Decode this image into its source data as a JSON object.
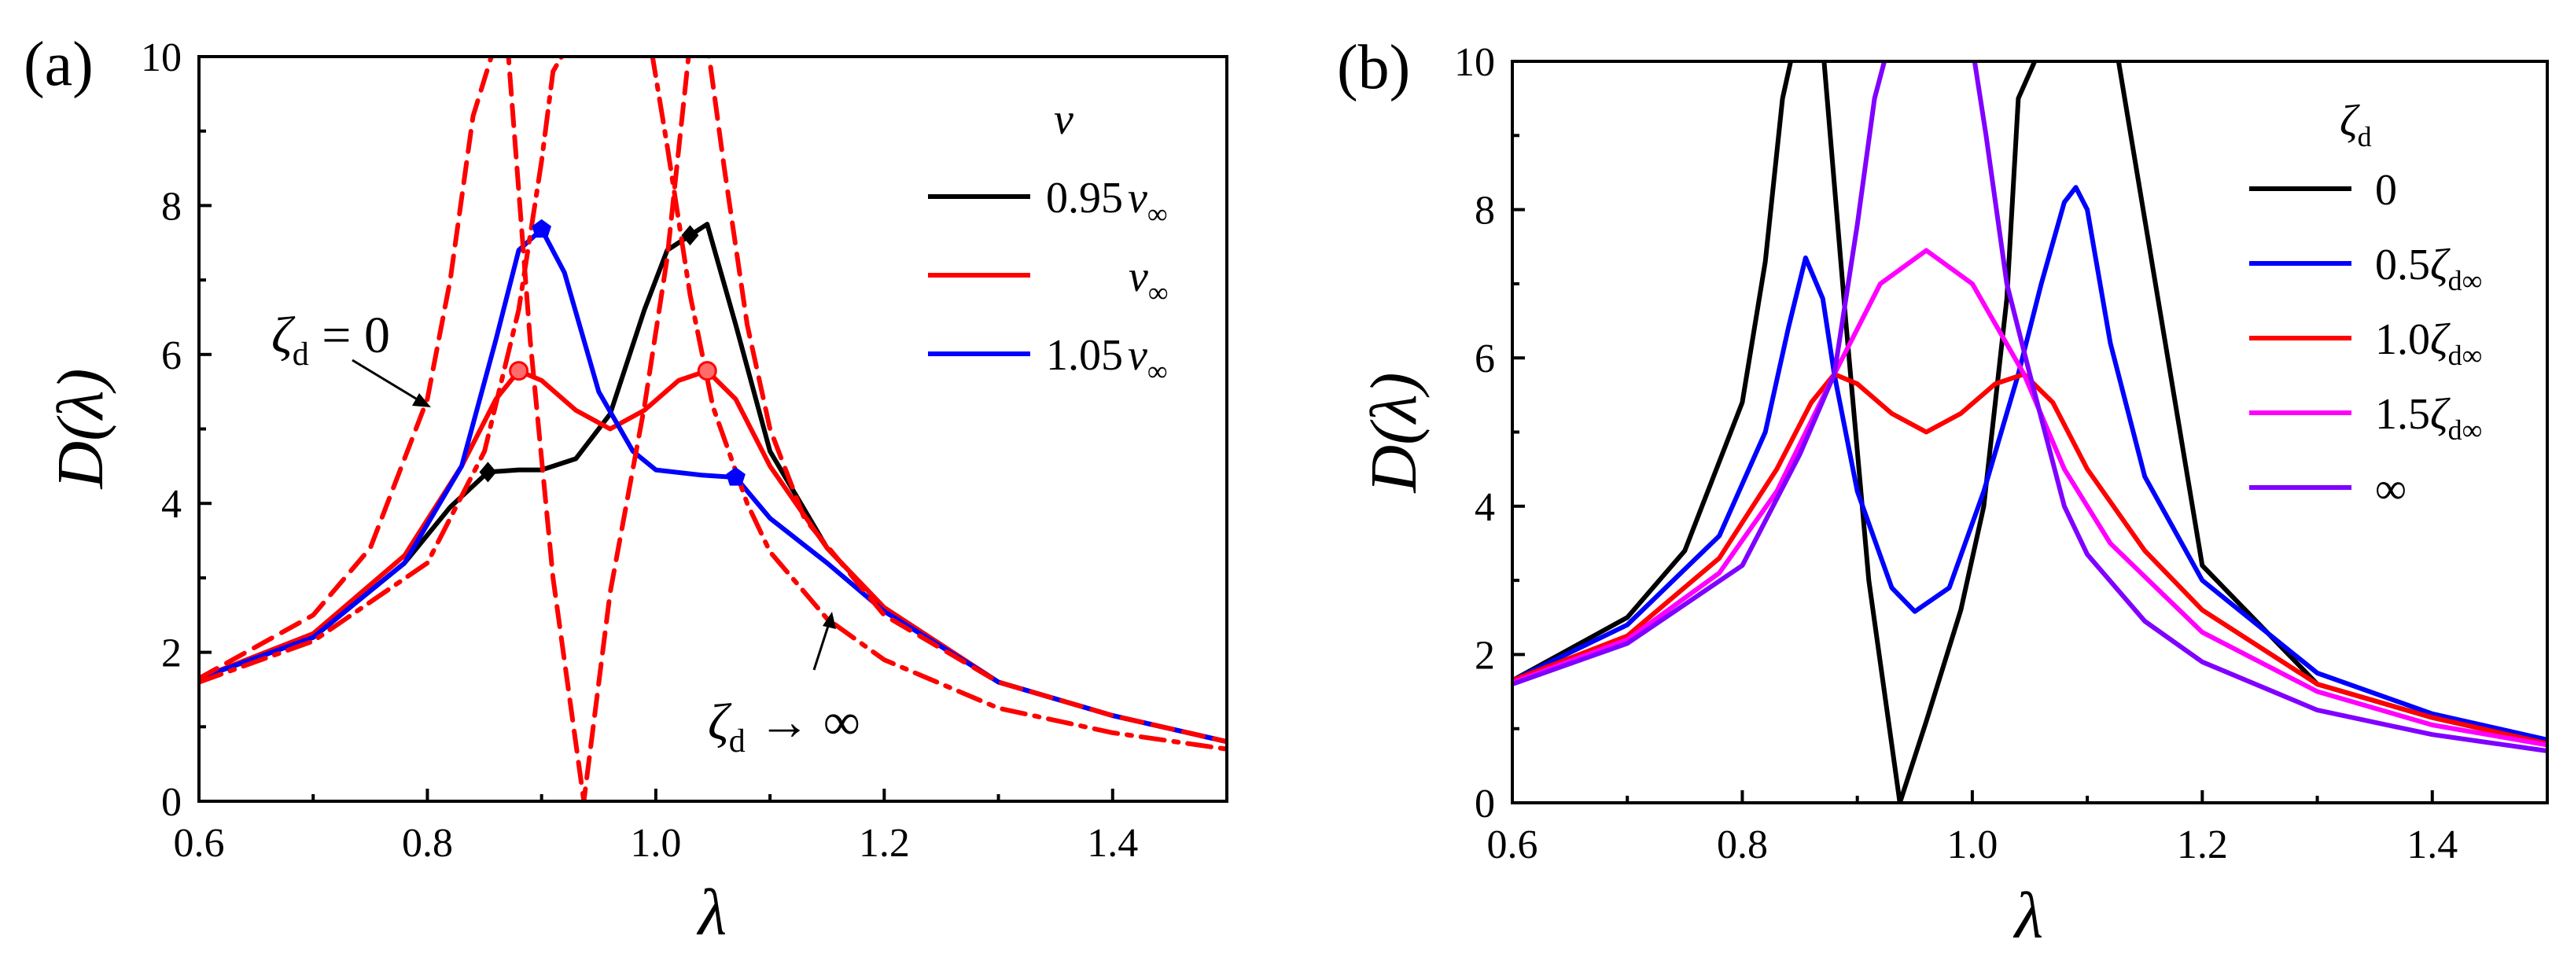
{
  "chart_data": [
    {
      "type": "line",
      "panel_label": "(a)",
      "xlabel": "λ",
      "ylabel": "D(λ)",
      "xlim": [
        0.6,
        1.5
      ],
      "ylim": [
        0,
        10
      ],
      "xticks": [
        "0.6",
        "0.8",
        "1.0",
        "1.2",
        "1.4"
      ],
      "yticks": [
        "0",
        "2",
        "4",
        "6",
        "8",
        "10"
      ],
      "legend": {
        "title": "ν",
        "entries": [
          {
            "label": "0.95ν∞",
            "prefix": "0.95",
            "symbol": "ν",
            "sub": "∞",
            "color": "#000000"
          },
          {
            "label": "ν∞",
            "prefix": "",
            "symbol": "ν",
            "sub": "∞",
            "color": "#ff0000"
          },
          {
            "label": "1.05ν∞",
            "prefix": "1.05",
            "symbol": "ν",
            "sub": "∞",
            "color": "#0000ff"
          }
        ]
      },
      "series": [
        {
          "name": "0.95ν∞",
          "color": "#000000",
          "style": "solid",
          "x": [
            0.6,
            0.7,
            0.78,
            0.82,
            0.853,
            0.88,
            0.9,
            0.93,
            0.96,
            0.99,
            1.01,
            1.03,
            1.045,
            1.07,
            1.1,
            1.15,
            1.2,
            1.3,
            1.4,
            1.5
          ],
          "y": [
            1.65,
            2.2,
            3.2,
            3.95,
            4.42,
            4.45,
            4.45,
            4.6,
            5.2,
            6.6,
            7.4,
            7.6,
            7.75,
            6.4,
            4.7,
            3.4,
            2.6,
            1.6,
            1.15,
            0.8
          ]
        },
        {
          "name": "ν∞",
          "color": "#ff0000",
          "style": "solid",
          "x": [
            0.6,
            0.7,
            0.78,
            0.83,
            0.86,
            0.88,
            0.9,
            0.93,
            0.96,
            0.99,
            1.02,
            1.045,
            1.07,
            1.1,
            1.15,
            1.2,
            1.3,
            1.4,
            1.5
          ],
          "y": [
            1.65,
            2.25,
            3.3,
            4.5,
            5.4,
            5.78,
            5.65,
            5.25,
            5.0,
            5.25,
            5.65,
            5.78,
            5.4,
            4.5,
            3.4,
            2.6,
            1.6,
            1.15,
            0.8
          ]
        },
        {
          "name": "1.05ν∞",
          "color": "#0000ff",
          "style": "solid",
          "x": [
            0.6,
            0.7,
            0.78,
            0.83,
            0.86,
            0.88,
            0.9,
            0.92,
            0.95,
            0.98,
            1.0,
            1.04,
            1.07,
            1.1,
            1.15,
            1.2,
            1.3,
            1.4,
            1.5
          ],
          "y": [
            1.65,
            2.2,
            3.2,
            4.5,
            6.2,
            7.4,
            7.68,
            7.1,
            5.5,
            4.7,
            4.45,
            4.38,
            4.35,
            3.8,
            3.2,
            2.55,
            1.6,
            1.15,
            0.8
          ]
        },
        {
          "name": "ζd = 0",
          "color": "#ff0000",
          "style": "dash",
          "x": [
            0.6,
            0.7,
            0.75,
            0.8,
            0.82,
            0.84,
            0.86,
            0.87,
            0.89,
            0.91,
            0.937,
            0.96,
            0.99,
            1.01,
            1.03,
            1.045,
            1.06,
            1.08,
            1.1,
            1.13,
            1.2,
            1.3,
            1.4,
            1.5
          ],
          "y": [
            1.65,
            2.5,
            3.4,
            5.4,
            7.0,
            9.2,
            10.2,
            10.2,
            6.2,
            3.0,
            0.0,
            2.8,
            5.3,
            7.3,
            10.2,
            10.2,
            8.5,
            6.4,
            5.0,
            3.8,
            2.5,
            1.6,
            1.15,
            0.8
          ]
        },
        {
          "name": "ζd → ∞",
          "color": "#ff0000",
          "style": "dashdot",
          "x": [
            0.6,
            0.7,
            0.8,
            0.85,
            0.88,
            0.9,
            0.91,
            0.925,
            0.995,
            1.01,
            1.03,
            1.05,
            1.08,
            1.1,
            1.15,
            1.2,
            1.3,
            1.4,
            1.5
          ],
          "y": [
            1.6,
            2.15,
            3.2,
            4.7,
            6.6,
            8.6,
            9.8,
            10.2,
            10.2,
            8.8,
            6.8,
            5.3,
            4.0,
            3.35,
            2.45,
            1.9,
            1.25,
            0.92,
            0.7
          ]
        }
      ],
      "markers": [
        {
          "series": "0.95ν∞",
          "shape": "diamond",
          "x": 0.853,
          "y": 4.42
        },
        {
          "series": "0.95ν∞",
          "shape": "diamond",
          "x": 1.03,
          "y": 7.6
        },
        {
          "series": "ν∞",
          "shape": "circle",
          "x": 0.88,
          "y": 5.78
        },
        {
          "series": "ν∞",
          "shape": "circle",
          "x": 1.045,
          "y": 5.78
        },
        {
          "series": "1.05ν∞",
          "shape": "pentagon",
          "x": 0.9,
          "y": 7.68
        },
        {
          "series": "1.05ν∞",
          "shape": "pentagon",
          "x": 1.07,
          "y": 4.35
        }
      ],
      "annotations": [
        {
          "text": "ζd = 0",
          "symbol": "ζ",
          "sub": "d",
          "rest": " = 0"
        },
        {
          "text": "ζd → ∞",
          "symbol": "ζ",
          "sub": "d",
          "rest": " → ∞"
        }
      ]
    },
    {
      "type": "line",
      "panel_label": "(b)",
      "xlabel": "λ",
      "ylabel": "D(λ)",
      "xlim": [
        0.6,
        1.5
      ],
      "ylim": [
        0,
        10
      ],
      "xticks": [
        "0.6",
        "0.8",
        "1.0",
        "1.2",
        "1.4"
      ],
      "yticks": [
        "0",
        "2",
        "4",
        "6",
        "8",
        "10"
      ],
      "legend": {
        "title": "ζd",
        "entries": [
          {
            "label": "0",
            "color": "#000000"
          },
          {
            "label": "0.5ζd∞",
            "color": "#0000ff"
          },
          {
            "label": "1.0ζd∞",
            "color": "#ff0000"
          },
          {
            "label": "1.5ζd∞",
            "color": "#ff00ff"
          },
          {
            "label": "∞",
            "color": "#8000ff"
          }
        ]
      },
      "series": [
        {
          "name": "0",
          "color": "#000000",
          "style": "solid",
          "x": [
            0.6,
            0.7,
            0.75,
            0.8,
            0.82,
            0.835,
            0.845,
            0.87,
            0.89,
            0.91,
            0.937,
            0.96,
            0.99,
            1.01,
            1.03,
            1.04,
            1.06,
            1.08,
            1.1,
            1.125,
            1.2,
            1.3,
            1.4,
            1.5
          ],
          "y": [
            1.65,
            2.5,
            3.4,
            5.4,
            7.3,
            9.5,
            10.2,
            10.2,
            6.5,
            3.0,
            0.0,
            1.1,
            2.6,
            4.0,
            6.8,
            9.5,
            10.2,
            10.2,
            10.2,
            10.2,
            3.2,
            1.6,
            1.15,
            0.8
          ]
        },
        {
          "name": "0.5ζd∞",
          "color": "#0000ff",
          "style": "solid",
          "x": [
            0.6,
            0.7,
            0.78,
            0.82,
            0.84,
            0.855,
            0.87,
            0.88,
            0.9,
            0.93,
            0.95,
            0.98,
            1.01,
            1.04,
            1.06,
            1.08,
            1.09,
            1.1,
            1.12,
            1.15,
            1.2,
            1.3,
            1.4,
            1.5
          ],
          "y": [
            1.65,
            2.4,
            3.6,
            5.0,
            6.4,
            7.35,
            6.8,
            5.78,
            4.2,
            2.9,
            2.58,
            2.9,
            4.2,
            5.78,
            7.0,
            8.1,
            8.3,
            8.0,
            6.2,
            4.4,
            3.0,
            1.75,
            1.2,
            0.85
          ]
        },
        {
          "name": "1.0ζd∞",
          "color": "#ff0000",
          "style": "solid",
          "x": [
            0.6,
            0.7,
            0.78,
            0.83,
            0.86,
            0.88,
            0.9,
            0.93,
            0.96,
            0.99,
            1.02,
            1.045,
            1.07,
            1.1,
            1.15,
            1.2,
            1.3,
            1.4,
            1.5
          ],
          "y": [
            1.65,
            2.25,
            3.3,
            4.5,
            5.4,
            5.78,
            5.65,
            5.25,
            5.0,
            5.25,
            5.65,
            5.78,
            5.4,
            4.5,
            3.4,
            2.6,
            1.6,
            1.15,
            0.8
          ]
        },
        {
          "name": "1.5ζd∞",
          "color": "#ff00ff",
          "style": "solid",
          "x": [
            0.6,
            0.7,
            0.78,
            0.83,
            0.88,
            0.92,
            0.96,
            1.0,
            1.045,
            1.08,
            1.12,
            1.2,
            1.3,
            1.4,
            1.5
          ],
          "y": [
            1.62,
            2.2,
            3.1,
            4.2,
            5.78,
            7.0,
            7.45,
            7.0,
            5.78,
            4.5,
            3.5,
            2.3,
            1.5,
            1.05,
            0.78
          ]
        },
        {
          "name": "∞",
          "color": "#8000ff",
          "style": "solid",
          "x": [
            0.6,
            0.7,
            0.8,
            0.85,
            0.88,
            0.9,
            0.915,
            0.927,
            1.0,
            1.012,
            1.03,
            1.05,
            1.08,
            1.1,
            1.15,
            1.2,
            1.3,
            1.4,
            1.5
          ],
          "y": [
            1.6,
            2.15,
            3.2,
            4.7,
            5.78,
            7.8,
            9.5,
            10.2,
            10.2,
            9.0,
            7.0,
            5.78,
            4.0,
            3.35,
            2.45,
            1.9,
            1.25,
            0.92,
            0.7
          ]
        }
      ]
    }
  ]
}
